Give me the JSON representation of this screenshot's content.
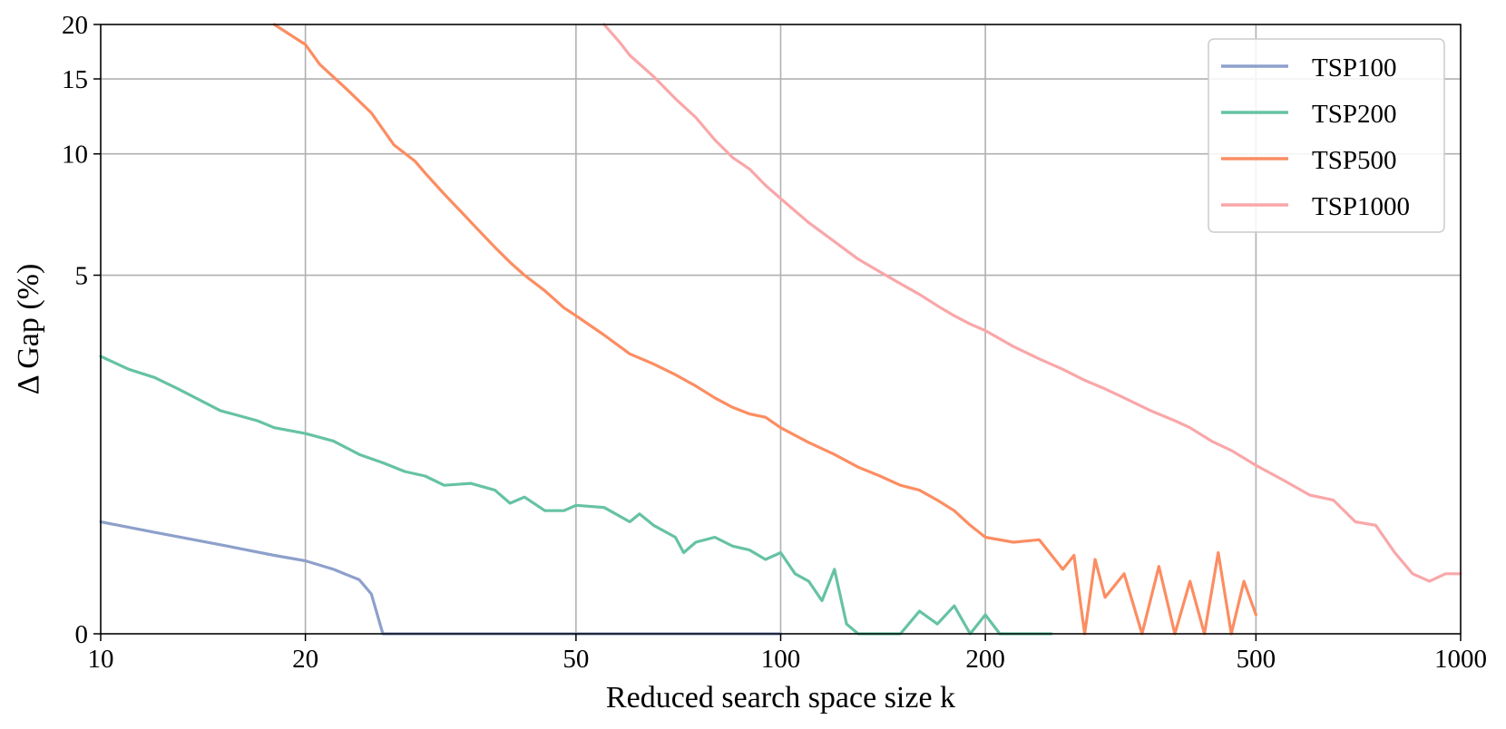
{
  "chart_data": {
    "type": "line",
    "xlabel": "Reduced search space size k",
    "ylabel": "Δ Gap (%)",
    "x_scale": "log",
    "y_scale": "symlog",
    "xlim": [
      10,
      1000
    ],
    "ylim": [
      0,
      20
    ],
    "xticks": [
      10,
      20,
      50,
      100,
      200,
      500,
      1000
    ],
    "xtick_labels": [
      "10",
      "20",
      "50",
      "100",
      "200",
      "500",
      "1000"
    ],
    "yticks": [
      0,
      5,
      10,
      15,
      20
    ],
    "ytick_labels": [
      "0",
      "5",
      "10",
      "15",
      "20"
    ],
    "grid": true,
    "legend_position": "top-right",
    "series": [
      {
        "name": "TSP100",
        "color": "#8DA0CB",
        "points": [
          [
            10,
            0.75
          ],
          [
            12,
            0.66
          ],
          [
            15,
            0.56
          ],
          [
            18,
            0.48
          ],
          [
            20,
            0.44
          ],
          [
            22,
            0.38
          ],
          [
            24,
            0.31
          ],
          [
            25,
            0.22
          ],
          [
            26,
            0.0
          ],
          [
            100,
            0.0
          ]
        ]
      },
      {
        "name": "TSP200",
        "color": "#66C2A5",
        "points": [
          [
            10,
            3.0
          ],
          [
            11,
            2.75
          ],
          [
            12,
            2.6
          ],
          [
            13,
            2.4
          ],
          [
            15,
            2.05
          ],
          [
            17,
            1.9
          ],
          [
            18,
            1.8
          ],
          [
            20,
            1.72
          ],
          [
            22,
            1.62
          ],
          [
            24,
            1.45
          ],
          [
            26,
            1.35
          ],
          [
            28,
            1.25
          ],
          [
            30,
            1.2
          ],
          [
            32,
            1.1
          ],
          [
            35,
            1.12
          ],
          [
            38,
            1.05
          ],
          [
            40,
            0.92
          ],
          [
            42,
            0.98
          ],
          [
            45,
            0.85
          ],
          [
            48,
            0.85
          ],
          [
            50,
            0.9
          ],
          [
            55,
            0.88
          ],
          [
            60,
            0.75
          ],
          [
            62,
            0.82
          ],
          [
            65,
            0.72
          ],
          [
            70,
            0.62
          ],
          [
            72,
            0.5
          ],
          [
            75,
            0.58
          ],
          [
            80,
            0.62
          ],
          [
            85,
            0.55
          ],
          [
            90,
            0.52
          ],
          [
            95,
            0.45
          ],
          [
            100,
            0.5
          ],
          [
            105,
            0.35
          ],
          [
            110,
            0.3
          ],
          [
            115,
            0.18
          ],
          [
            120,
            0.38
          ],
          [
            125,
            0.05
          ],
          [
            130,
            0.0
          ],
          [
            150,
            0.0
          ],
          [
            160,
            0.12
          ],
          [
            170,
            0.05
          ],
          [
            180,
            0.15
          ],
          [
            190,
            0.0
          ],
          [
            200,
            0.1
          ],
          [
            210,
            0.0
          ],
          [
            250,
            0.0
          ]
        ]
      },
      {
        "name": "TSP500",
        "color": "#FC8D62",
        "points": [
          [
            18,
            20.0
          ],
          [
            20,
            18.0
          ],
          [
            21,
            16.2
          ],
          [
            23,
            14.2
          ],
          [
            25,
            12.5
          ],
          [
            27,
            10.5
          ],
          [
            29,
            9.6
          ],
          [
            30,
            9.0
          ],
          [
            32,
            8.0
          ],
          [
            34,
            7.2
          ],
          [
            36,
            6.5
          ],
          [
            38,
            5.9
          ],
          [
            40,
            5.4
          ],
          [
            42,
            5.0
          ],
          [
            45,
            4.55
          ],
          [
            48,
            4.1
          ],
          [
            50,
            3.9
          ],
          [
            55,
            3.45
          ],
          [
            60,
            3.05
          ],
          [
            65,
            2.85
          ],
          [
            70,
            2.65
          ],
          [
            75,
            2.45
          ],
          [
            80,
            2.25
          ],
          [
            85,
            2.1
          ],
          [
            90,
            2.0
          ],
          [
            95,
            1.95
          ],
          [
            100,
            1.8
          ],
          [
            110,
            1.6
          ],
          [
            120,
            1.45
          ],
          [
            130,
            1.3
          ],
          [
            140,
            1.2
          ],
          [
            150,
            1.1
          ],
          [
            160,
            1.05
          ],
          [
            170,
            0.95
          ],
          [
            180,
            0.85
          ],
          [
            190,
            0.72
          ],
          [
            200,
            0.62
          ],
          [
            220,
            0.58
          ],
          [
            240,
            0.6
          ],
          [
            260,
            0.38
          ],
          [
            270,
            0.48
          ],
          [
            280,
            0.0
          ],
          [
            290,
            0.45
          ],
          [
            300,
            0.2
          ],
          [
            320,
            0.35
          ],
          [
            340,
            0.0
          ],
          [
            360,
            0.4
          ],
          [
            380,
            0.0
          ],
          [
            400,
            0.3
          ],
          [
            420,
            0.0
          ],
          [
            440,
            0.5
          ],
          [
            460,
            0.0
          ],
          [
            480,
            0.3
          ],
          [
            500,
            0.1
          ]
        ]
      },
      {
        "name": "TSP1000",
        "color": "#F9A7A9",
        "points": [
          [
            55,
            20.0
          ],
          [
            58,
            18.2
          ],
          [
            60,
            17.0
          ],
          [
            65,
            15.2
          ],
          [
            70,
            13.5
          ],
          [
            75,
            12.2
          ],
          [
            80,
            10.8
          ],
          [
            85,
            9.8
          ],
          [
            90,
            9.2
          ],
          [
            95,
            8.4
          ],
          [
            100,
            7.8
          ],
          [
            110,
            6.8
          ],
          [
            120,
            6.1
          ],
          [
            130,
            5.5
          ],
          [
            140,
            5.1
          ],
          [
            150,
            4.75
          ],
          [
            160,
            4.45
          ],
          [
            170,
            4.15
          ],
          [
            180,
            3.9
          ],
          [
            190,
            3.7
          ],
          [
            200,
            3.55
          ],
          [
            220,
            3.2
          ],
          [
            240,
            2.95
          ],
          [
            260,
            2.75
          ],
          [
            280,
            2.55
          ],
          [
            300,
            2.4
          ],
          [
            320,
            2.25
          ],
          [
            350,
            2.05
          ],
          [
            380,
            1.9
          ],
          [
            400,
            1.8
          ],
          [
            430,
            1.62
          ],
          [
            460,
            1.5
          ],
          [
            500,
            1.32
          ],
          [
            550,
            1.15
          ],
          [
            600,
            1.0
          ],
          [
            650,
            0.95
          ],
          [
            700,
            0.75
          ],
          [
            750,
            0.72
          ],
          [
            800,
            0.5
          ],
          [
            850,
            0.35
          ],
          [
            900,
            0.3
          ],
          [
            950,
            0.35
          ],
          [
            1000,
            0.35
          ]
        ]
      }
    ]
  }
}
